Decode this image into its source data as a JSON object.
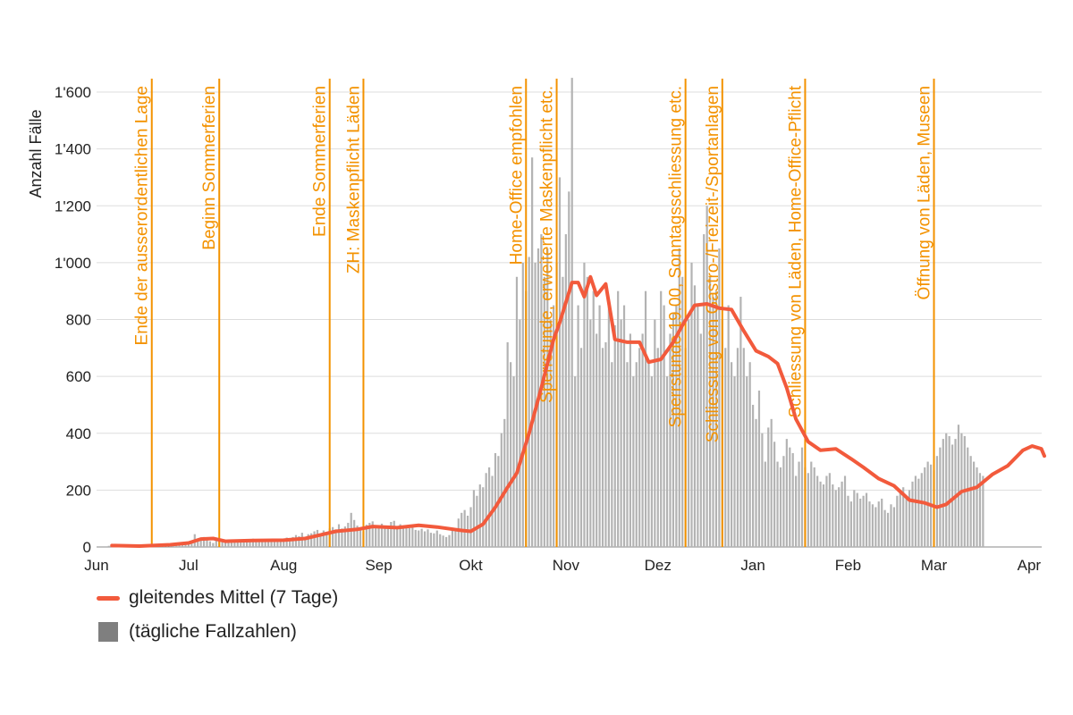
{
  "chart_data": {
    "type": "bar+line",
    "ylabel": "Anzahl Fälle",
    "ylim": [
      0,
      1600
    ],
    "yticks": [
      0,
      200,
      400,
      600,
      800,
      1000,
      1200,
      1400,
      1600
    ],
    "ytick_labels": [
      "0",
      "200",
      "400",
      "600",
      "800",
      "1'000",
      "1'200",
      "1'400",
      "1'600"
    ],
    "xlim": [
      "2020-06-01",
      "2021-04-06"
    ],
    "months": [
      {
        "date": "2020-06-01",
        "label": "Jun"
      },
      {
        "date": "2020-07-01",
        "label": "Jul"
      },
      {
        "date": "2020-08-01",
        "label": "Aug"
      },
      {
        "date": "2020-09-01",
        "label": "Sep"
      },
      {
        "date": "2020-10-01",
        "label": "Okt"
      },
      {
        "date": "2020-11-01",
        "label": "Nov"
      },
      {
        "date": "2020-12-01",
        "label": "Dez"
      },
      {
        "date": "2021-01-01",
        "label": "Jan"
      },
      {
        "date": "2021-02-01",
        "label": "Feb"
      },
      {
        "date": "2021-03-01",
        "label": "Mar"
      },
      {
        "date": "2021-04-01",
        "label": "Apr"
      }
    ],
    "grid": true,
    "legend_position": "bottom-left",
    "colors": {
      "bars": "#b3b3b3",
      "line": "#f25a3c",
      "events": "#f39200",
      "grid": "#dddddd"
    },
    "events": [
      {
        "date": "2020-06-19",
        "label": "Ende der ausserordentlichen Lage"
      },
      {
        "date": "2020-07-11",
        "label": "Beginn Sommerferien"
      },
      {
        "date": "2020-08-16",
        "label": "Ende Sommerferien"
      },
      {
        "date": "2020-08-27",
        "label": "ZH: Maskenpflicht Läden"
      },
      {
        "date": "2020-10-19",
        "label": "Home-Office empfohlen"
      },
      {
        "date": "2020-10-29",
        "label": "Sperrstunde, erweiterte Maskenpflicht etc."
      },
      {
        "date": "2020-12-10",
        "label": "Sperrstunde 19.00, Sonntagsschliessung etc."
      },
      {
        "date": "2020-12-22",
        "label": "Schliessung von Gastro-/Freizeit-/Sportanlagen"
      },
      {
        "date": "2021-01-18",
        "label": "Schliessung von Läden, Home-Office-Pflicht"
      },
      {
        "date": "2021-03-01",
        "label": "Öffnung von Läden, Museen"
      }
    ],
    "series": [
      {
        "name": "gleitendes Mittel (7 Tage)",
        "type": "line",
        "points": [
          [
            "2020-06-06",
            5
          ],
          [
            "2020-06-15",
            3
          ],
          [
            "2020-06-25",
            8
          ],
          [
            "2020-07-01",
            14
          ],
          [
            "2020-07-05",
            28
          ],
          [
            "2020-07-09",
            30
          ],
          [
            "2020-07-13",
            20
          ],
          [
            "2020-07-22",
            23
          ],
          [
            "2020-08-01",
            24
          ],
          [
            "2020-08-08",
            30
          ],
          [
            "2020-08-12",
            40
          ],
          [
            "2020-08-18",
            55
          ],
          [
            "2020-08-25",
            62
          ],
          [
            "2020-08-30",
            72
          ],
          [
            "2020-09-07",
            68
          ],
          [
            "2020-09-14",
            76
          ],
          [
            "2020-09-20",
            70
          ],
          [
            "2020-09-28",
            58
          ],
          [
            "2020-10-01",
            55
          ],
          [
            "2020-10-05",
            80
          ],
          [
            "2020-10-09",
            140
          ],
          [
            "2020-10-13",
            210
          ],
          [
            "2020-10-16",
            260
          ],
          [
            "2020-10-20",
            400
          ],
          [
            "2020-10-24",
            560
          ],
          [
            "2020-10-28",
            730
          ],
          [
            "2020-10-30",
            790
          ],
          [
            "2020-11-03",
            930
          ],
          [
            "2020-11-05",
            930
          ],
          [
            "2020-11-07",
            880
          ],
          [
            "2020-11-09",
            950
          ],
          [
            "2020-11-11",
            885
          ],
          [
            "2020-11-14",
            925
          ],
          [
            "2020-11-17",
            730
          ],
          [
            "2020-11-21",
            720
          ],
          [
            "2020-11-25",
            720
          ],
          [
            "2020-11-28",
            650
          ],
          [
            "2020-12-02",
            660
          ],
          [
            "2020-12-06",
            720
          ],
          [
            "2020-12-09",
            780
          ],
          [
            "2020-12-13",
            850
          ],
          [
            "2020-12-17",
            855
          ],
          [
            "2020-12-21",
            840
          ],
          [
            "2020-12-25",
            835
          ],
          [
            "2020-12-29",
            760
          ],
          [
            "2021-01-02",
            690
          ],
          [
            "2021-01-06",
            670
          ],
          [
            "2021-01-09",
            645
          ],
          [
            "2021-01-12",
            560
          ],
          [
            "2021-01-15",
            450
          ],
          [
            "2021-01-19",
            370
          ],
          [
            "2021-01-23",
            340
          ],
          [
            "2021-01-28",
            345
          ],
          [
            "2021-02-02",
            310
          ],
          [
            "2021-02-06",
            280
          ],
          [
            "2021-02-11",
            240
          ],
          [
            "2021-02-16",
            215
          ],
          [
            "2021-02-21",
            165
          ],
          [
            "2021-02-26",
            155
          ],
          [
            "2021-03-02",
            140
          ],
          [
            "2021-03-05",
            150
          ],
          [
            "2021-03-10",
            195
          ],
          [
            "2021-03-15",
            210
          ],
          [
            "2021-03-20",
            255
          ],
          [
            "2021-03-25",
            285
          ],
          [
            "2021-03-30",
            340
          ],
          [
            "2021-04-02",
            355
          ],
          [
            "2021-04-05",
            345
          ],
          [
            "2021-04-06",
            320
          ]
        ]
      },
      {
        "name": "(tägliche Fallzahlen)",
        "type": "bar",
        "daily_from": "2020-06-05",
        "values": [
          4,
          6,
          5,
          3,
          2,
          4,
          3,
          8,
          5,
          7,
          6,
          3,
          4,
          7,
          9,
          5,
          10,
          8,
          12,
          6,
          9,
          12,
          10,
          14,
          15,
          11,
          18,
          13,
          45,
          25,
          28,
          35,
          30,
          20,
          14,
          22,
          25,
          28,
          22,
          19,
          17,
          24,
          20,
          25,
          28,
          18,
          22,
          29,
          24,
          23,
          21,
          26,
          28,
          25,
          22,
          27,
          24,
          30,
          33,
          27,
          35,
          42,
          38,
          50,
          36,
          45,
          48,
          55,
          60,
          47,
          58,
          53,
          65,
          70,
          62,
          80,
          65,
          72,
          85,
          120,
          95,
          75,
          60,
          55,
          78,
          85,
          90,
          68,
          70,
          82,
          75,
          70,
          88,
          92,
          65,
          80,
          72,
          75,
          66,
          70,
          60,
          58,
          64,
          55,
          62,
          50,
          48,
          58,
          45,
          40,
          35,
          42,
          60,
          55,
          100,
          120,
          130,
          110,
          140,
          200,
          180,
          220,
          210,
          260,
          280,
          250,
          330,
          320,
          400,
          450,
          720,
          650,
          600,
          950,
          800,
          1000,
          900,
          1020,
          1370,
          1000,
          1050,
          1100,
          950,
          1050,
          800,
          850,
          1000,
          1300,
          950,
          1100,
          1250,
          1650,
          600,
          850,
          700,
          1000,
          950,
          800,
          900,
          750,
          850,
          700,
          720,
          850,
          650,
          780,
          900,
          800,
          850,
          650,
          750,
          600,
          650,
          700,
          750,
          900,
          650,
          600,
          800,
          700,
          900,
          850,
          600,
          750,
          820,
          850,
          1050,
          950,
          700,
          800,
          1000,
          920,
          850,
          750,
          1100,
          1200,
          950,
          880,
          900,
          1050,
          800,
          700,
          850,
          650,
          600,
          700,
          880,
          700,
          600,
          650,
          500,
          450,
          550,
          400,
          300,
          420,
          450,
          370,
          300,
          280,
          320,
          380,
          350,
          330,
          250,
          300,
          350,
          280,
          260,
          300,
          280,
          250,
          230,
          220,
          250,
          260,
          220,
          200,
          210,
          230,
          250,
          180,
          160,
          200,
          190,
          170,
          180,
          190,
          160,
          150,
          140,
          160,
          170,
          130,
          120,
          150,
          140,
          180,
          200,
          210,
          170,
          200,
          230,
          250,
          240,
          260,
          280,
          300,
          290,
          270,
          320,
          350,
          380,
          400,
          390,
          360,
          380,
          430,
          400,
          390,
          350,
          320,
          300,
          280,
          260,
          250
        ]
      }
    ]
  }
}
